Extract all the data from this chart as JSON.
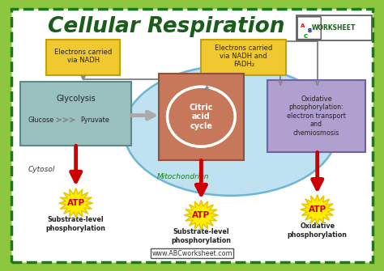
{
  "title": "Cellular Respiration",
  "title_color": "#1a5c1a",
  "bg_outer": "#8dc63f",
  "bg_inner": "#ffffff",
  "border_dash_color": "#1a7a1a",
  "mitochondrion_blob_color": "#b8dff0",
  "citric_box_color": "#c8785a",
  "glycolysis_box_color": "#9abfbf",
  "oxidative_box_color": "#b0a0d0",
  "nadh_box_color": "#f0c830",
  "nadh2_box_color": "#f0c830",
  "atp_color": "#ffee00",
  "atp_text_color": "#cc0000",
  "arrow_color": "#cc0000",
  "line_color": "#888888",
  "watermark": "www.ABCworksheet.com",
  "labels": {
    "glycolysis": "Glycolysis",
    "glucose_pyruvate": "Glucose⟹⟹⟹Pyruvate",
    "citric": "Citric\nacid\ncycle",
    "oxidative": "Oxidative\nphosphorylation:\nelectron transport\nand\nchemiosmosis",
    "nadh_left": "Electrons carried\nvia NADH",
    "nadh_right": "Electrons carried\nvia NADH and\nFADH₂",
    "mitochondrion": "Mitochondrion",
    "cytosol": "Cytosol",
    "atp1_label": "Substrate-level\nphosphorylation",
    "atp2_label": "Substrate-level\nphosphorylation",
    "atp3_label": "Oxidative\nphosphorylation"
  }
}
